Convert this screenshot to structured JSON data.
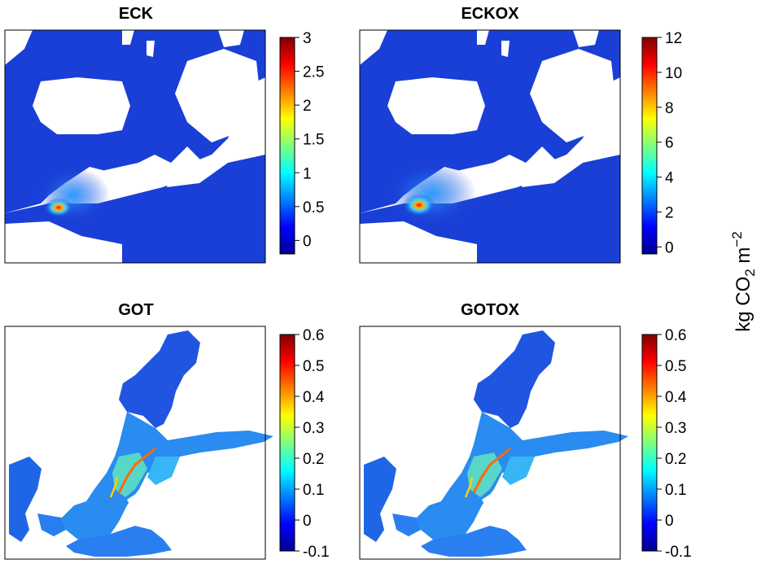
{
  "unit_label": {
    "prefix": "kg CO",
    "sub": "2",
    "mid": " m",
    "sup": "−2"
  },
  "colors": {
    "ocean_base": "#1a3fd6",
    "land": "#ffffff",
    "frame": "#000000",
    "colormap": [
      "#00008f",
      "#0000ff",
      "#007fff",
      "#00ffff",
      "#7fff7f",
      "#ffff00",
      "#ff7f00",
      "#ff0000",
      "#7f0000"
    ]
  },
  "chart_data": [
    {
      "type": "heatmap",
      "title": "ECK",
      "colorbar": {
        "min": -0.2,
        "max": 3.0,
        "ticks": [
          {
            "v": 3,
            "label": "3"
          },
          {
            "v": 2.5,
            "label": "2.5"
          },
          {
            "v": 2,
            "label": "2"
          },
          {
            "v": 1.5,
            "label": "1.5"
          },
          {
            "v": 1,
            "label": "1"
          },
          {
            "v": 0.5,
            "label": "0.5"
          },
          {
            "v": 0,
            "label": "0"
          }
        ]
      }
    },
    {
      "type": "heatmap",
      "title": "ECKOX",
      "colorbar": {
        "min": -0.4,
        "max": 12.0,
        "ticks": [
          {
            "v": 12,
            "label": "12"
          },
          {
            "v": 10,
            "label": "10"
          },
          {
            "v": 8,
            "label": "8"
          },
          {
            "v": 6,
            "label": "6"
          },
          {
            "v": 4,
            "label": "4"
          },
          {
            "v": 2,
            "label": "2"
          },
          {
            "v": 0,
            "label": "0"
          }
        ]
      }
    },
    {
      "type": "heatmap",
      "title": "GOT",
      "colorbar": {
        "min": -0.1,
        "max": 0.6,
        "ticks": [
          {
            "v": 0.6,
            "label": "0.6"
          },
          {
            "v": 0.5,
            "label": "0.5"
          },
          {
            "v": 0.4,
            "label": "0.4"
          },
          {
            "v": 0.3,
            "label": "0.3"
          },
          {
            "v": 0.2,
            "label": "0.2"
          },
          {
            "v": 0.1,
            "label": "0.1"
          },
          {
            "v": 0,
            "label": "0"
          },
          {
            "v": -0.1,
            "label": "-0.1"
          }
        ]
      }
    },
    {
      "type": "heatmap",
      "title": "GOTOX",
      "colorbar": {
        "min": -0.1,
        "max": 0.6,
        "ticks": [
          {
            "v": 0.6,
            "label": "0.6"
          },
          {
            "v": 0.5,
            "label": "0.5"
          },
          {
            "v": 0.4,
            "label": "0.4"
          },
          {
            "v": 0.3,
            "label": "0.3"
          },
          {
            "v": 0.2,
            "label": "0.2"
          },
          {
            "v": 0.1,
            "label": "0.1"
          },
          {
            "v": 0,
            "label": "0"
          },
          {
            "v": -0.1,
            "label": "-0.1"
          }
        ]
      }
    }
  ]
}
